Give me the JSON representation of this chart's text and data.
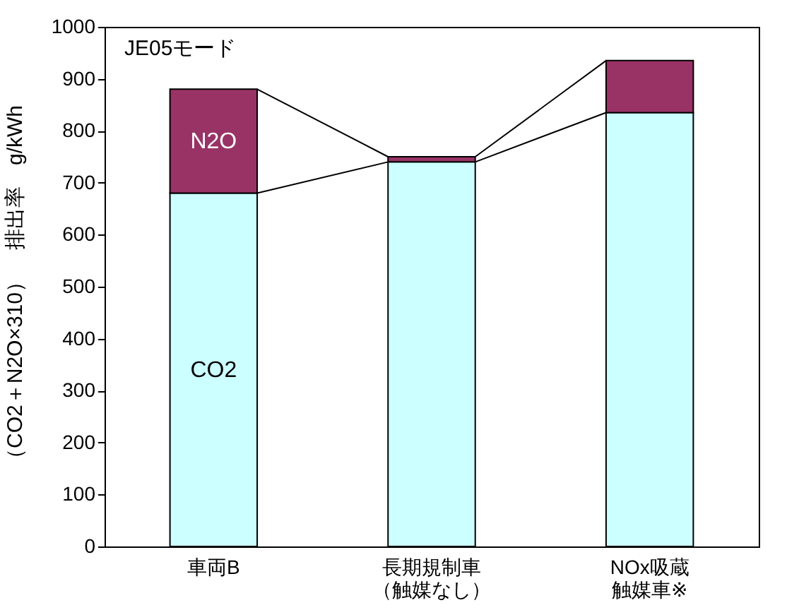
{
  "chart_data": {
    "type": "bar",
    "stacked": true,
    "ylabel": "（CO2＋N2O×310）　排出率　g/kWh",
    "annotations": [
      "JE05モード"
    ],
    "categories": [
      "車両B",
      "長期規制車（触媒なし）",
      "NOx吸蔵触媒車※"
    ],
    "series": [
      {
        "name": "CO2",
        "color": "#ccffff",
        "values": [
          680,
          740,
          835
        ]
      },
      {
        "name": "N2O",
        "color": "#993366",
        "values": [
          200,
          10,
          100
        ]
      }
    ],
    "ylim": [
      0,
      1000
    ],
    "yticks": [
      0,
      100,
      200,
      300,
      400,
      500,
      600,
      700,
      800,
      900,
      {
        "value": 1000,
        "label": "1000"
      }
    ],
    "grid": false,
    "legend": false
  }
}
